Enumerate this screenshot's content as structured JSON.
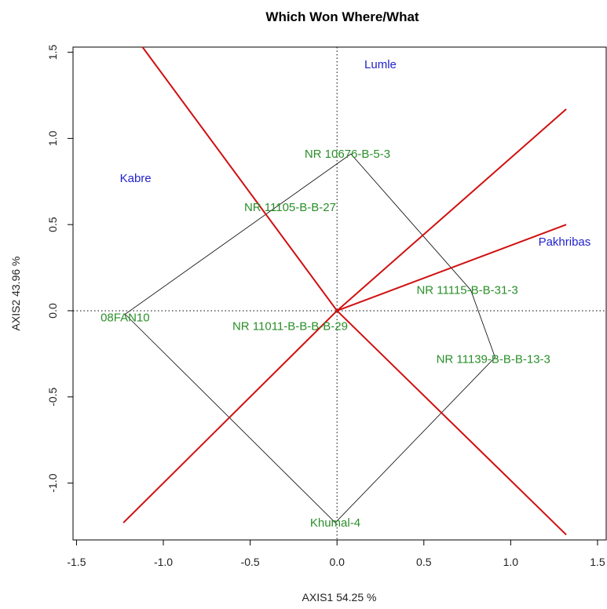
{
  "chart_data": {
    "type": "scatter",
    "title": "Which Won Where/What",
    "xlabel": "AXIS1 54.25 %",
    "ylabel": "AXIS2 43.96 %",
    "xlim": [
      -1.52,
      1.55
    ],
    "ylim": [
      -1.33,
      1.53
    ],
    "x_ticks": [
      "-1.5",
      "-1.0",
      "-0.5",
      "0.0",
      "0.5",
      "1.0",
      "1.5"
    ],
    "x_tick_values": [
      -1.5,
      -1.0,
      -0.5,
      0.0,
      0.5,
      1.0,
      1.5
    ],
    "y_ticks": [
      "-1.0",
      "-0.5",
      "0.0",
      "0.5",
      "1.0",
      "1.5"
    ],
    "y_tick_values": [
      -1.0,
      -0.5,
      0.0,
      0.5,
      1.0,
      1.5
    ],
    "grid": false,
    "colors": {
      "environment": "#2222cc",
      "genotype": "#2a8f2a",
      "sector_line": "#d01010",
      "hull": "#000000"
    },
    "environments": [
      {
        "label": "Lumle",
        "x": 0.25,
        "y": 1.43
      },
      {
        "label": "Kabre",
        "x": -1.16,
        "y": 0.77
      },
      {
        "label": "Pakhribas",
        "x": 1.31,
        "y": 0.4
      }
    ],
    "genotypes": [
      {
        "label": "NR 10676-B-5-3",
        "x": 0.06,
        "y": 0.91
      },
      {
        "label": "NR 11105-B-B-27",
        "x": -0.27,
        "y": 0.6
      },
      {
        "label": "NR 11115-B-B-31-3",
        "x": 0.75,
        "y": 0.12
      },
      {
        "label": "08FAN10",
        "x": -1.22,
        "y": -0.04
      },
      {
        "label": "NR 11011-B-B-B-B-29",
        "x": -0.27,
        "y": -0.09
      },
      {
        "label": "NR 11139-B-B-B-13-3",
        "x": 0.9,
        "y": -0.28
      },
      {
        "label": "Khumal-4",
        "x": -0.01,
        "y": -1.23
      }
    ],
    "hull": [
      {
        "x": 0.08,
        "y": 0.91
      },
      {
        "x": 0.77,
        "y": 0.12
      },
      {
        "x": 0.91,
        "y": -0.27
      },
      {
        "x": -0.01,
        "y": -1.23
      },
      {
        "x": -1.22,
        "y": -0.02
      }
    ],
    "sector_rays": [
      {
        "x": -1.12,
        "y": 1.53
      },
      {
        "x": 1.32,
        "y": 1.17
      },
      {
        "x": 1.32,
        "y": 0.5
      },
      {
        "x": 1.32,
        "y": -1.3
      },
      {
        "x": -1.23,
        "y": -1.23
      }
    ]
  }
}
